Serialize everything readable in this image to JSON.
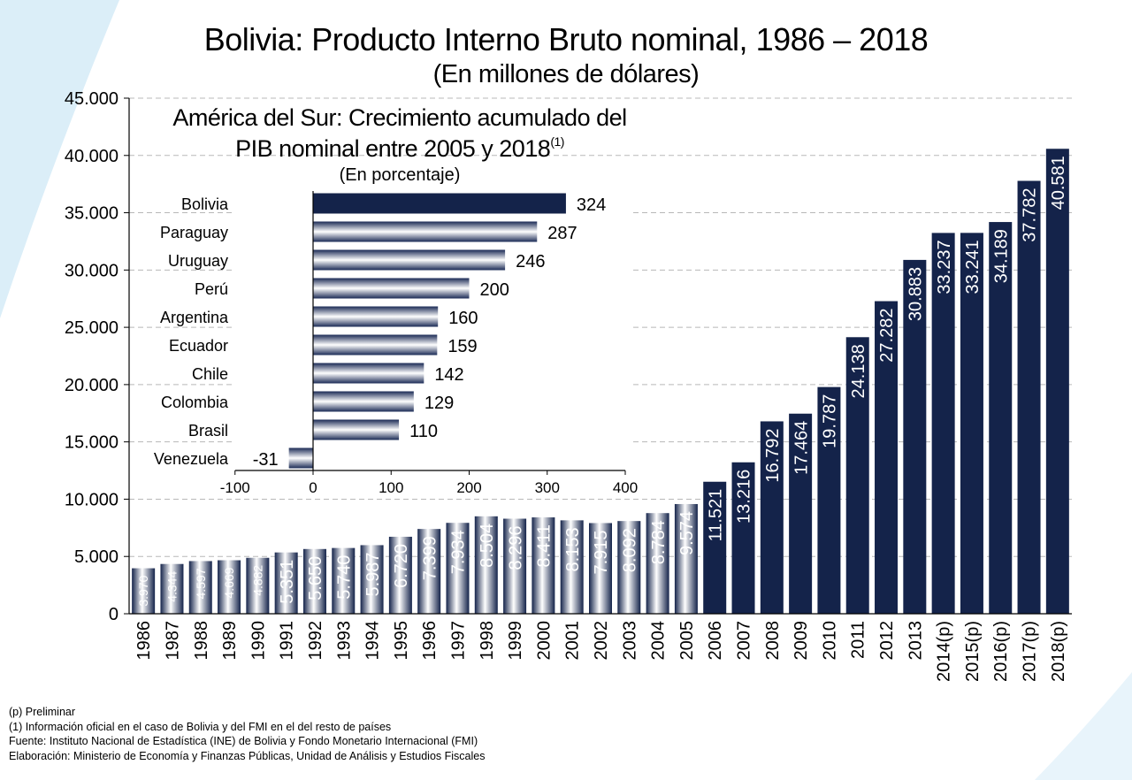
{
  "chart_data": [
    {
      "type": "bar",
      "title": "Bolivia: Producto Interno Bruto nominal, 1986 – 2018",
      "subtitle": "(En millones de dólares)",
      "xlabel": "",
      "ylabel": "",
      "ylim": [
        0,
        45000
      ],
      "y_ticks": [
        "0",
        "5.000",
        "10.000",
        "15.000",
        "20.000",
        "25.000",
        "30.000",
        "35.000",
        "40.000",
        "45.000"
      ],
      "y_tick_values": [
        0,
        5000,
        10000,
        15000,
        20000,
        25000,
        30000,
        35000,
        40000,
        45000
      ],
      "grid": true,
      "categories": [
        "1986",
        "1987",
        "1988",
        "1989",
        "1990",
        "1991",
        "1992",
        "1993",
        "1994",
        "1995",
        "1996",
        "1997",
        "1998",
        "1999",
        "2000",
        "2001",
        "2002",
        "2003",
        "2004",
        "2005",
        "2006",
        "2007",
        "2008",
        "2009",
        "2010",
        "2011",
        "2012",
        "2013",
        "2014(p)",
        "2015(p)",
        "2016(p)",
        "2017(p)",
        "2018(p)"
      ],
      "values": [
        3970,
        4344,
        4597,
        4669,
        4882,
        5351,
        5650,
        5740,
        5987,
        6720,
        7399,
        7934,
        8504,
        8296,
        8411,
        8153,
        7915,
        8092,
        8784,
        9574,
        11521,
        13216,
        16792,
        17464,
        19787,
        24138,
        27282,
        30883,
        33237,
        33241,
        34189,
        37782,
        40581
      ],
      "labels": [
        "3.970",
        "4.344",
        "4.597",
        "4.669",
        "4.882",
        "5.351",
        "5.650",
        "5.740",
        "5.987",
        "6.720",
        "7.399",
        "7.934",
        "8.504",
        "8.296",
        "8.411",
        "8.153",
        "7.915",
        "8.092",
        "8.784",
        "9.574",
        "11.521",
        "13.216",
        "16.792",
        "17.464",
        "19.787",
        "24.138",
        "27.282",
        "30.883",
        "33.237",
        "33.241",
        "34.189",
        "37.782",
        "40.581"
      ]
    },
    {
      "type": "bar",
      "orientation": "horizontal",
      "title_line1": "América del Sur: Crecimiento acumulado del",
      "title_line2": "PIB nominal entre 2005 y 2018",
      "title_sup": "(1)",
      "subtitle": "(En porcentaje)",
      "xlim": [
        -100,
        400
      ],
      "x_ticks": [
        "-100",
        "0",
        "100",
        "200",
        "300",
        "400"
      ],
      "x_tick_values": [
        -100,
        0,
        100,
        200,
        300,
        400
      ],
      "categories": [
        "Bolivia",
        "Paraguay",
        "Uruguay",
        "Perú",
        "Argentina",
        "Ecuador",
        "Chile",
        "Colombia",
        "Brasil",
        "Venezuela"
      ],
      "values": [
        324,
        287,
        246,
        200,
        160,
        159,
        142,
        129,
        110,
        -31
      ],
      "labels": [
        "324",
        "287",
        "246",
        "200",
        "160",
        "159",
        "142",
        "129",
        "110",
        "-31"
      ]
    }
  ],
  "colors": {
    "bar_dark": "#14234a",
    "bar_mid": "#4f5f86",
    "bar_light": "#ffffff",
    "grid": "#b8b8b8",
    "deco_blue": "#dbeef8"
  },
  "notes": [
    "(p) Preliminar",
    "(1) Información oficial en el caso de Bolivia y del FMI en el del resto de países",
    "Fuente: Instituto Nacional de Estadística (INE) de Bolivia y Fondo Monetario Internacional (FMI)",
    "Elaboración: Ministerio de Economía y Finanzas Públicas, Unidad de Análisis y Estudios Fiscales"
  ]
}
